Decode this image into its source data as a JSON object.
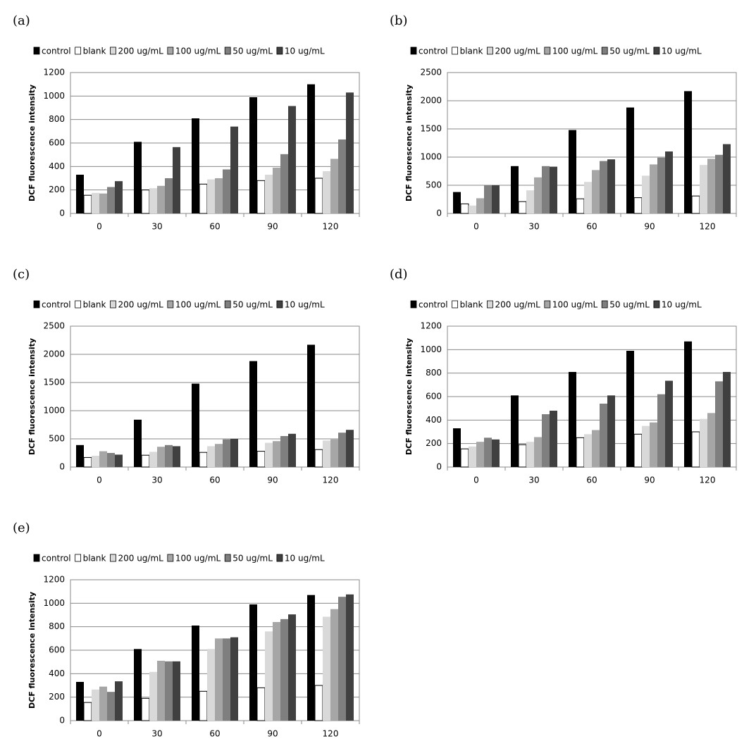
{
  "chart_data": [
    {
      "type": "bar",
      "panel_label": "(a)",
      "ylabel": "DCF fluorescence intensity",
      "categories": [
        "0",
        "30",
        "60",
        "90",
        "120"
      ],
      "ylim": [
        0,
        1200
      ],
      "yticks": [
        0,
        200,
        400,
        600,
        800,
        1000,
        1200
      ],
      "grid": true,
      "series": [
        {
          "name": "control",
          "color": "#000000",
          "values": [
            330,
            610,
            810,
            990,
            1100
          ]
        },
        {
          "name": "blank",
          "color": "#ffffff",
          "values": [
            155,
            200,
            250,
            280,
            300
          ]
        },
        {
          "name": "200 ug/mL",
          "color": "#d9d9d9",
          "values": [
            175,
            215,
            290,
            330,
            360
          ]
        },
        {
          "name": "100 ug/mL",
          "color": "#a6a6a6",
          "values": [
            170,
            235,
            300,
            390,
            465
          ]
        },
        {
          "name": "50 ug/mL",
          "color": "#7f7f7f",
          "values": [
            225,
            300,
            375,
            505,
            630
          ]
        },
        {
          "name": "10 ug/mL",
          "color": "#404040",
          "values": [
            275,
            565,
            740,
            915,
            1030
          ]
        }
      ]
    },
    {
      "type": "bar",
      "panel_label": "(b)",
      "ylabel": "DCF fluorescence intensity",
      "categories": [
        "0",
        "30",
        "60",
        "90",
        "120"
      ],
      "ylim": [
        0,
        2500
      ],
      "yticks": [
        0,
        500,
        1000,
        1500,
        2000,
        2500
      ],
      "grid": true,
      "series": [
        {
          "name": "control",
          "color": "#000000",
          "values": [
            380,
            840,
            1480,
            1880,
            2170
          ]
        },
        {
          "name": "blank",
          "color": "#ffffff",
          "values": [
            170,
            210,
            260,
            280,
            310
          ]
        },
        {
          "name": "200 ug/mL",
          "color": "#d9d9d9",
          "values": [
            140,
            410,
            560,
            670,
            860
          ]
        },
        {
          "name": "100 ug/mL",
          "color": "#a6a6a6",
          "values": [
            270,
            640,
            770,
            870,
            970
          ]
        },
        {
          "name": "50 ug/mL",
          "color": "#7f7f7f",
          "values": [
            500,
            840,
            930,
            990,
            1040
          ]
        },
        {
          "name": "10 ug/mL",
          "color": "#404040",
          "values": [
            500,
            830,
            960,
            1100,
            1230
          ]
        }
      ]
    },
    {
      "type": "bar",
      "panel_label": "(c)",
      "ylabel": "DCF fluorescence intensity",
      "categories": [
        "0",
        "30",
        "60",
        "90",
        "120"
      ],
      "ylim": [
        0,
        2500
      ],
      "yticks": [
        0,
        500,
        1000,
        1500,
        2000,
        2500
      ],
      "grid": true,
      "series": [
        {
          "name": "control",
          "color": "#000000",
          "values": [
            390,
            840,
            1480,
            1880,
            2170
          ]
        },
        {
          "name": "blank",
          "color": "#ffffff",
          "values": [
            170,
            210,
            260,
            280,
            310
          ]
        },
        {
          "name": "200 ug/mL",
          "color": "#d9d9d9",
          "values": [
            200,
            270,
            370,
            430,
            470
          ]
        },
        {
          "name": "100 ug/mL",
          "color": "#a6a6a6",
          "values": [
            280,
            360,
            410,
            460,
            490
          ]
        },
        {
          "name": "50 ug/mL",
          "color": "#7f7f7f",
          "values": [
            250,
            390,
            490,
            550,
            610
          ]
        },
        {
          "name": "10 ug/mL",
          "color": "#404040",
          "values": [
            220,
            370,
            500,
            590,
            660
          ]
        }
      ]
    },
    {
      "type": "bar",
      "panel_label": "(d)",
      "ylabel": "DCF fluorescence intensity",
      "categories": [
        "0",
        "30",
        "60",
        "90",
        "120"
      ],
      "ylim": [
        0,
        1200
      ],
      "yticks": [
        0,
        200,
        400,
        600,
        800,
        1000,
        1200
      ],
      "grid": true,
      "series": [
        {
          "name": "control",
          "color": "#000000",
          "values": [
            330,
            610,
            810,
            990,
            1070
          ]
        },
        {
          "name": "blank",
          "color": "#ffffff",
          "values": [
            155,
            190,
            250,
            280,
            300
          ]
        },
        {
          "name": "200 ug/mL",
          "color": "#d9d9d9",
          "values": [
            175,
            215,
            280,
            350,
            410
          ]
        },
        {
          "name": "100 ug/mL",
          "color": "#a6a6a6",
          "values": [
            215,
            255,
            315,
            380,
            460
          ]
        },
        {
          "name": "50 ug/mL",
          "color": "#7f7f7f",
          "values": [
            250,
            450,
            540,
            620,
            730
          ]
        },
        {
          "name": "10 ug/mL",
          "color": "#404040",
          "values": [
            235,
            480,
            610,
            735,
            810
          ]
        }
      ]
    },
    {
      "type": "bar",
      "panel_label": "(e)",
      "ylabel": "DCF fluorescence intensity",
      "categories": [
        "0",
        "30",
        "60",
        "90",
        "120"
      ],
      "ylim": [
        0,
        1200
      ],
      "yticks": [
        0,
        200,
        400,
        600,
        800,
        1000,
        1200
      ],
      "grid": true,
      "series": [
        {
          "name": "control",
          "color": "#000000",
          "values": [
            330,
            610,
            810,
            990,
            1070
          ]
        },
        {
          "name": "blank",
          "color": "#ffffff",
          "values": [
            155,
            190,
            250,
            280,
            300
          ]
        },
        {
          "name": "200 ug/mL",
          "color": "#d9d9d9",
          "values": [
            265,
            415,
            610,
            760,
            885
          ]
        },
        {
          "name": "100 ug/mL",
          "color": "#a6a6a6",
          "values": [
            290,
            510,
            700,
            840,
            950
          ]
        },
        {
          "name": "50 ug/mL",
          "color": "#7f7f7f",
          "values": [
            245,
            505,
            700,
            865,
            1055
          ]
        },
        {
          "name": "10 ug/mL",
          "color": "#404040",
          "values": [
            335,
            505,
            710,
            905,
            1075
          ]
        }
      ]
    }
  ]
}
